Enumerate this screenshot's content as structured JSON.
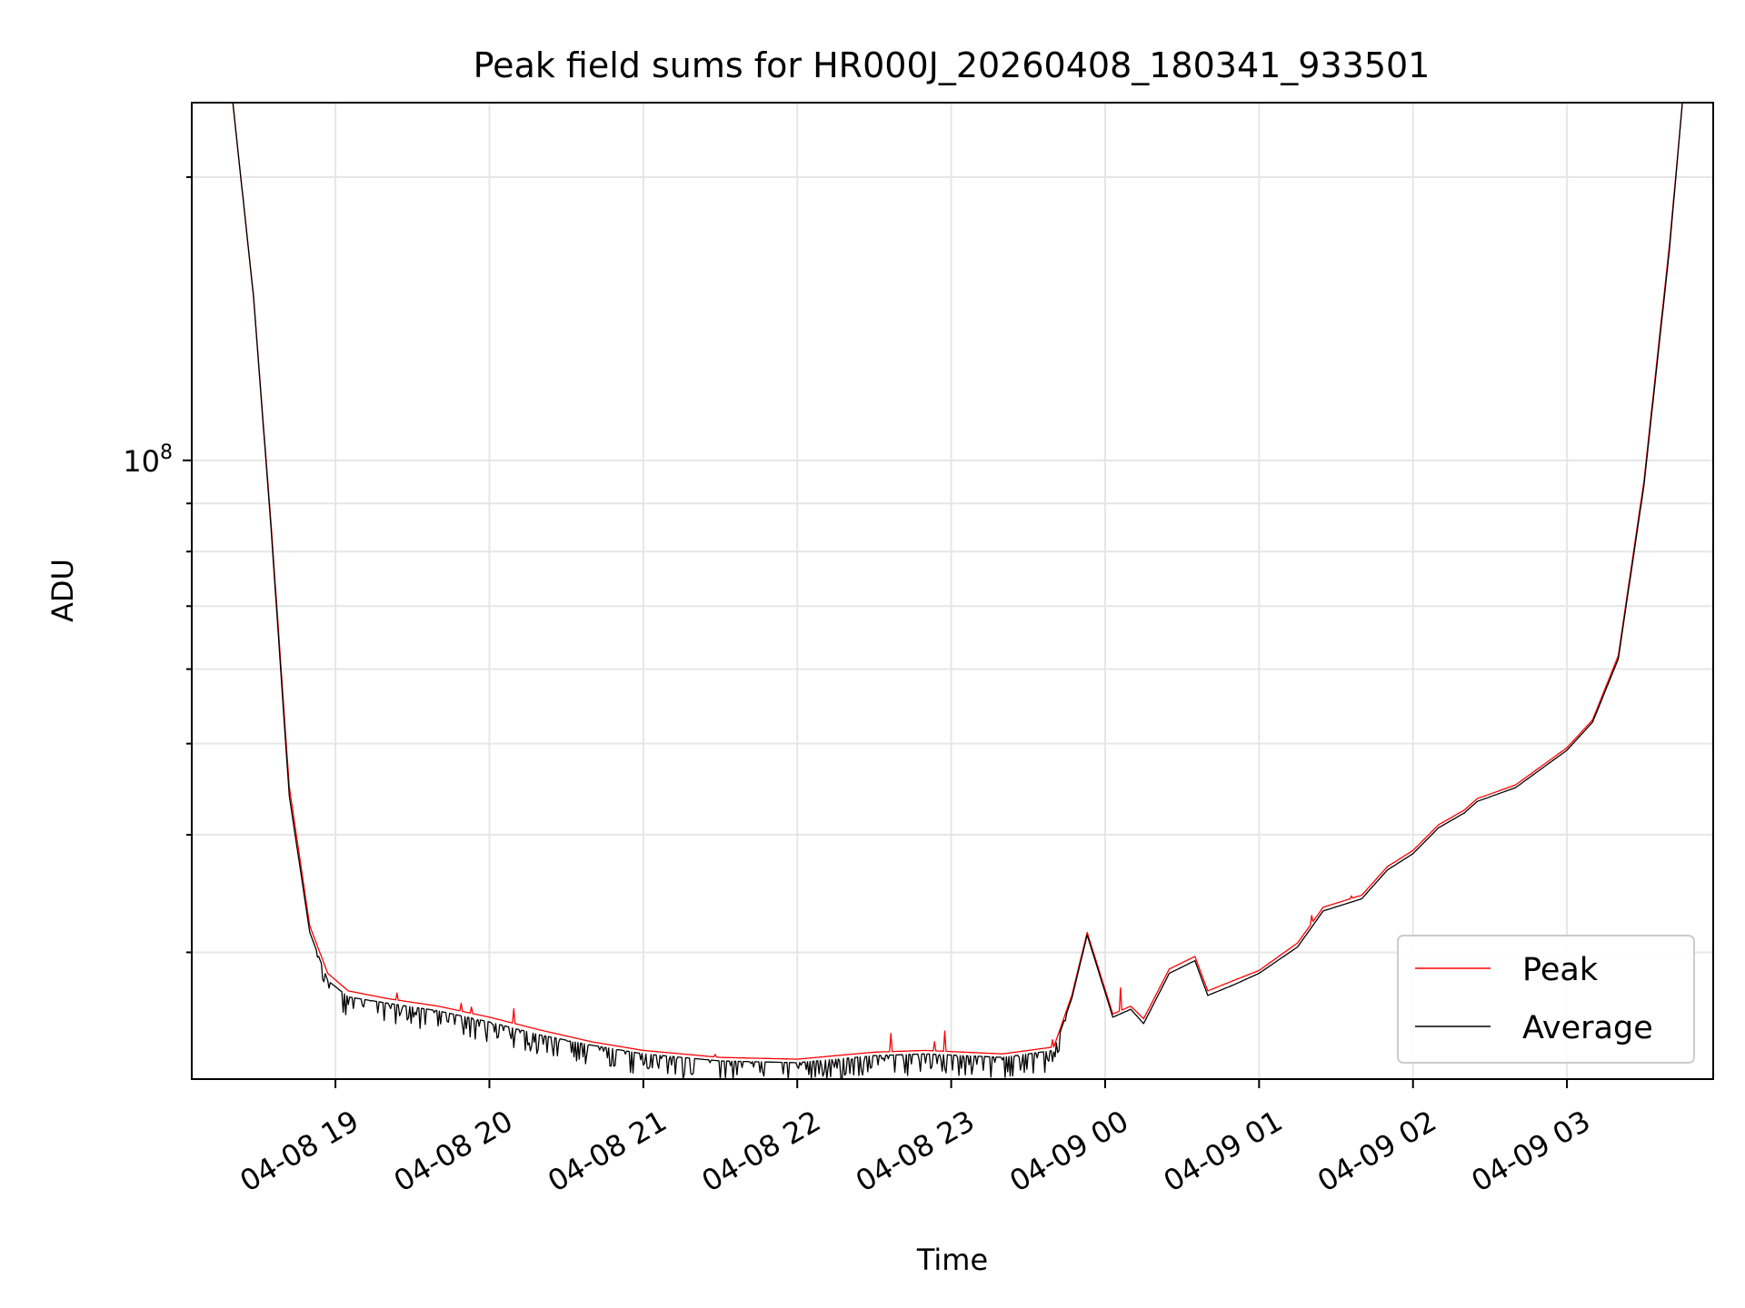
{
  "chart_data": {
    "type": "line",
    "title": "Peak field sums for HR000J_20260408_180341_933501",
    "xlabel": "Time",
    "ylabel": "ADU",
    "yscale": "log",
    "ylim": [
      22000000,
      240000000
    ],
    "xlim": [
      "04-08 18:04",
      "04-09 03:57"
    ],
    "x_ticks": [
      "04-08 19",
      "04-08 20",
      "04-08 21",
      "04-08 22",
      "04-08 23",
      "04-09 00",
      "04-09 01",
      "04-09 02",
      "04-09 03"
    ],
    "y_ticks": [
      "10^8"
    ],
    "grid": true,
    "legend_position": "lower-right",
    "colors": {
      "peak": "#ff0000",
      "average": "#000000",
      "grid": "#e6e6e6"
    },
    "series": [
      {
        "name": "Peak",
        "x": [
          "04-08 18:04",
          "04-08 18:20",
          "04-08 18:28",
          "04-08 18:35",
          "04-08 18:42",
          "04-08 18:50",
          "04-08 18:57",
          "04-08 19:05",
          "04-08 19:20",
          "04-08 19:40",
          "04-08 20:00",
          "04-08 20:20",
          "04-08 20:40",
          "04-08 21:00",
          "04-08 21:30",
          "04-08 22:00",
          "04-08 22:30",
          "04-08 22:50",
          "04-08 23:20",
          "04-08 23:40",
          "04-08 23:47",
          "04-08 23:53",
          "04-09 00:03",
          "04-09 00:10",
          "04-09 00:15",
          "04-09 00:25",
          "04-09 00:35",
          "04-09 00:40",
          "04-09 00:50",
          "04-09 01:00",
          "04-09 01:15",
          "04-09 01:25",
          "04-09 01:40",
          "04-09 01:50",
          "04-09 02:00",
          "04-09 02:10",
          "04-09 02:20",
          "04-09 02:25",
          "04-09 02:40",
          "04-09 02:50",
          "04-09 03:00",
          "04-09 03:10",
          "04-09 03:20",
          "04-09 03:30",
          "04-09 03:40",
          "04-09 03:45",
          "04-09 03:57"
        ],
        "values": [
          240000000,
          240000000,
          150000000,
          85000000,
          45000000,
          32000000,
          28500000,
          27300000,
          26800000,
          26300000,
          25600000,
          24800000,
          24100000,
          23600000,
          23200000,
          23100000,
          23500000,
          23600000,
          23400000,
          23800000,
          27000000,
          31500000,
          25800000,
          26300000,
          25500000,
          28800000,
          29700000,
          27300000,
          28000000,
          28700000,
          30700000,
          33500000,
          34500000,
          37000000,
          38500000,
          41000000,
          42500000,
          43700000,
          45200000,
          47300000,
          49500000,
          53000000,
          62000000,
          95000000,
          170000000,
          240000000,
          240000000
        ]
      },
      {
        "name": "Average",
        "x": [
          "04-08 18:04",
          "04-08 18:20",
          "04-08 18:28",
          "04-08 18:35",
          "04-08 18:42",
          "04-08 18:50",
          "04-08 18:57",
          "04-08 19:05",
          "04-08 19:20",
          "04-08 19:40",
          "04-08 20:00",
          "04-08 20:20",
          "04-08 20:40",
          "04-08 21:00",
          "04-08 21:30",
          "04-08 22:00",
          "04-08 22:30",
          "04-08 22:50",
          "04-08 23:20",
          "04-08 23:40",
          "04-08 23:47",
          "04-08 23:53",
          "04-09 00:03",
          "04-09 00:10",
          "04-09 00:15",
          "04-09 00:25",
          "04-09 00:35",
          "04-09 00:40",
          "04-09 00:50",
          "04-09 01:00",
          "04-09 01:15",
          "04-09 01:25",
          "04-09 01:40",
          "04-09 01:50",
          "04-09 02:00",
          "04-09 02:10",
          "04-09 02:20",
          "04-09 02:25",
          "04-09 02:40",
          "04-09 02:50",
          "04-09 03:00",
          "04-09 03:10",
          "04-09 03:20",
          "04-09 03:30",
          "04-09 03:40",
          "04-09 03:45",
          "04-09 03:57"
        ],
        "values": [
          240000000,
          240000000,
          150000000,
          84000000,
          44000000,
          31500000,
          28000000,
          26900000,
          26500000,
          26000000,
          25300000,
          24500000,
          23900000,
          23400000,
          23000000,
          22900000,
          23300000,
          23400000,
          23200000,
          23600000,
          26800000,
          31300000,
          25600000,
          26100000,
          25200000,
          28500000,
          29400000,
          27000000,
          27700000,
          28500000,
          30400000,
          33200000,
          34200000,
          36700000,
          38200000,
          40700000,
          42200000,
          43400000,
          44900000,
          47000000,
          49200000,
          52700000,
          61500000,
          94000000,
          168000000,
          240000000,
          240000000
        ]
      }
    ]
  }
}
